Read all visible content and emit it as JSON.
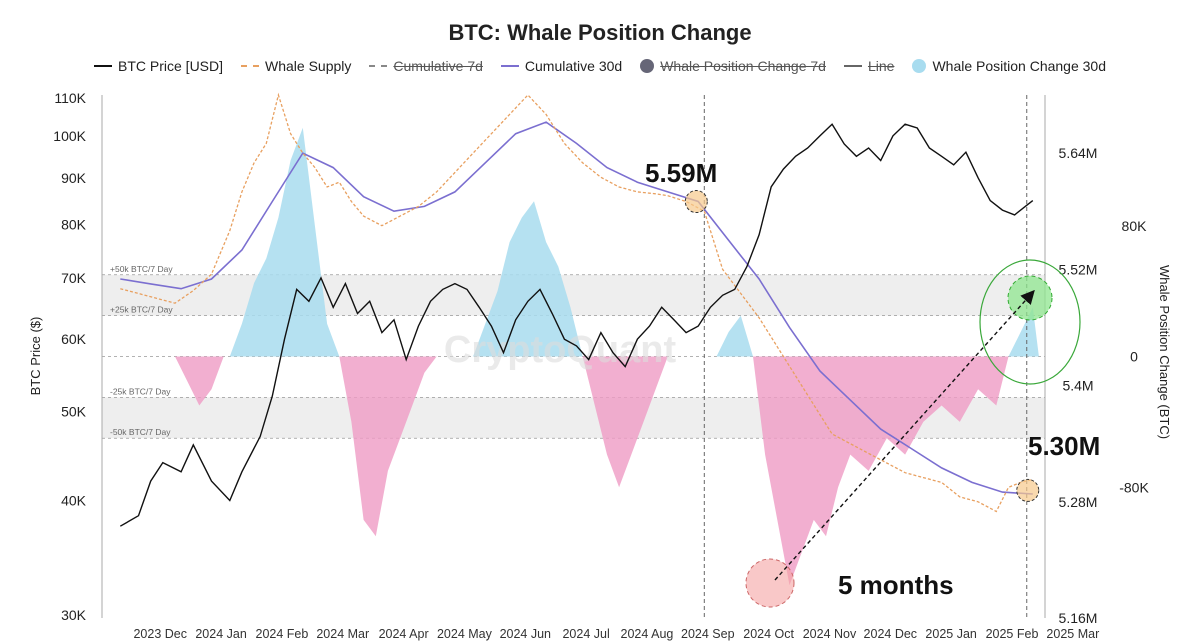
{
  "chart_data": {
    "type": "line",
    "title": "BTC: Whale Position Change",
    "watermark": "CryptoQuant",
    "legend": [
      {
        "name": "BTC Price [USD]",
        "style": "solid",
        "color": "#111111",
        "struck": false
      },
      {
        "name": "Whale Supply",
        "style": "dashed",
        "color": "#e8a060",
        "struck": false
      },
      {
        "name": "Cumulative 7d",
        "style": "dashed",
        "color": "#888888",
        "struck": true
      },
      {
        "name": "Cumulative 30d",
        "style": "solid",
        "color": "#7b6fd0",
        "struck": false
      },
      {
        "name": "Whale Position Change 7d",
        "style": "dot",
        "color": "#666677",
        "struck": true
      },
      {
        "name": "Line",
        "style": "solid",
        "color": "#666666",
        "struck": true
      },
      {
        "name": "Whale Position Change 30d",
        "style": "dot",
        "color": "#a8dcef",
        "struck": false
      }
    ],
    "x_axis": {
      "labels": [
        "2023 Dec",
        "2024 Jan",
        "2024 Feb",
        "2024 Mar",
        "2024 Apr",
        "2024 May",
        "2024 Jun",
        "2024 Jul",
        "2024 Aug",
        "2024 Sep",
        "2024 Oct",
        "2024 Nov",
        "2024 Dec",
        "2025 Jan",
        "2025 Feb",
        "2025 Mar"
      ],
      "range_months": [
        -0.3,
        15.2
      ]
    },
    "y_left": {
      "label": "BTC Price ($)",
      "scale": "log",
      "range": [
        30000,
        110000
      ],
      "ticks": [
        110000,
        100000,
        90000,
        80000,
        70000,
        60000,
        50000,
        40000,
        30000
      ],
      "tick_labels": [
        "110K",
        "100K",
        "90K",
        "80K",
        "70K",
        "60K",
        "50K",
        "40K",
        "30K"
      ]
    },
    "y_supply": {
      "range": [
        5.16,
        5.7
      ],
      "ticks": [
        5.64,
        5.52,
        5.4,
        5.28,
        5.16
      ],
      "tick_labels": [
        "5.64M",
        "5.52M",
        "5.4M",
        "5.28M",
        "5.16M"
      ]
    },
    "y_right": {
      "label": "Whale Position Change (BTC)",
      "range": [
        -160000,
        160000
      ],
      "ticks": [
        80000,
        0,
        -80000
      ],
      "tick_labels": [
        "80K",
        "0",
        "-80K"
      ]
    },
    "bands": [
      {
        "label": "+50k BTC/7 Day",
        "value": 50000
      },
      {
        "label": "+25k BTC/7 Day",
        "value": 25000
      },
      {
        "label": "-25k BTC/7 Day",
        "value": -25000
      },
      {
        "label": "-50k BTC/7 Day",
        "value": -50000
      }
    ],
    "btc_price": [
      [
        0.0,
        37500
      ],
      [
        0.3,
        38500
      ],
      [
        0.5,
        42000
      ],
      [
        0.7,
        44000
      ],
      [
        1.0,
        43000
      ],
      [
        1.2,
        46000
      ],
      [
        1.5,
        42000
      ],
      [
        1.8,
        40000
      ],
      [
        2.0,
        43000
      ],
      [
        2.3,
        47000
      ],
      [
        2.5,
        52000
      ],
      [
        2.7,
        60000
      ],
      [
        2.9,
        68000
      ],
      [
        3.1,
        66000
      ],
      [
        3.3,
        70000
      ],
      [
        3.5,
        65000
      ],
      [
        3.7,
        69000
      ],
      [
        3.9,
        64000
      ],
      [
        4.1,
        66000
      ],
      [
        4.3,
        61000
      ],
      [
        4.5,
        63000
      ],
      [
        4.7,
        57000
      ],
      [
        4.9,
        62000
      ],
      [
        5.1,
        66000
      ],
      [
        5.3,
        68000
      ],
      [
        5.5,
        69000
      ],
      [
        5.7,
        68000
      ],
      [
        5.9,
        65000
      ],
      [
        6.1,
        62000
      ],
      [
        6.3,
        58000
      ],
      [
        6.5,
        63000
      ],
      [
        6.7,
        66000
      ],
      [
        6.9,
        68000
      ],
      [
        7.1,
        64000
      ],
      [
        7.3,
        60000
      ],
      [
        7.5,
        59000
      ],
      [
        7.7,
        57000
      ],
      [
        7.9,
        61000
      ],
      [
        8.1,
        58000
      ],
      [
        8.3,
        56000
      ],
      [
        8.5,
        60000
      ],
      [
        8.7,
        62000
      ],
      [
        8.9,
        65000
      ],
      [
        9.1,
        63000
      ],
      [
        9.3,
        61000
      ],
      [
        9.5,
        62000
      ],
      [
        9.7,
        65000
      ],
      [
        9.9,
        67000
      ],
      [
        10.1,
        68000
      ],
      [
        10.3,
        72000
      ],
      [
        10.5,
        78000
      ],
      [
        10.7,
        88000
      ],
      [
        10.9,
        92000
      ],
      [
        11.1,
        95000
      ],
      [
        11.3,
        97000
      ],
      [
        11.5,
        100000
      ],
      [
        11.7,
        103000
      ],
      [
        11.9,
        98000
      ],
      [
        12.1,
        95000
      ],
      [
        12.3,
        97000
      ],
      [
        12.5,
        94000
      ],
      [
        12.7,
        100000
      ],
      [
        12.9,
        103000
      ],
      [
        13.1,
        102000
      ],
      [
        13.3,
        97000
      ],
      [
        13.5,
        95000
      ],
      [
        13.7,
        93000
      ],
      [
        13.9,
        96000
      ],
      [
        14.1,
        90000
      ],
      [
        14.3,
        85000
      ],
      [
        14.5,
        83000
      ],
      [
        14.7,
        82000
      ],
      [
        14.9,
        84000
      ],
      [
        15.0,
        85000
      ]
    ],
    "whale_supply": [
      [
        0.0,
        5.5
      ],
      [
        0.3,
        5.495
      ],
      [
        0.6,
        5.49
      ],
      [
        0.9,
        5.485
      ],
      [
        1.2,
        5.498
      ],
      [
        1.5,
        5.515
      ],
      [
        1.8,
        5.56
      ],
      [
        2.0,
        5.6
      ],
      [
        2.2,
        5.63
      ],
      [
        2.4,
        5.65
      ],
      [
        2.6,
        5.7
      ],
      [
        2.8,
        5.66
      ],
      [
        3.0,
        5.64
      ],
      [
        3.2,
        5.625
      ],
      [
        3.4,
        5.605
      ],
      [
        3.6,
        5.61
      ],
      [
        3.8,
        5.59
      ],
      [
        4.0,
        5.575
      ],
      [
        4.3,
        5.565
      ],
      [
        4.6,
        5.575
      ],
      [
        4.9,
        5.585
      ],
      [
        5.2,
        5.6
      ],
      [
        5.5,
        5.62
      ],
      [
        5.8,
        5.64
      ],
      [
        6.1,
        5.66
      ],
      [
        6.4,
        5.68
      ],
      [
        6.7,
        5.7
      ],
      [
        7.0,
        5.68
      ],
      [
        7.3,
        5.65
      ],
      [
        7.6,
        5.63
      ],
      [
        7.9,
        5.615
      ],
      [
        8.2,
        5.605
      ],
      [
        8.5,
        5.6
      ],
      [
        8.8,
        5.598
      ],
      [
        9.0,
        5.596
      ],
      [
        9.3,
        5.59
      ],
      [
        9.6,
        5.58
      ],
      [
        9.9,
        5.52
      ],
      [
        10.2,
        5.495
      ],
      [
        10.5,
        5.47
      ],
      [
        10.8,
        5.44
      ],
      [
        11.1,
        5.41
      ],
      [
        11.4,
        5.38
      ],
      [
        11.7,
        5.35
      ],
      [
        12.0,
        5.34
      ],
      [
        12.3,
        5.33
      ],
      [
        12.6,
        5.32
      ],
      [
        12.9,
        5.31
      ],
      [
        13.2,
        5.305
      ],
      [
        13.5,
        5.3
      ],
      [
        13.8,
        5.285
      ],
      [
        14.1,
        5.28
      ],
      [
        14.4,
        5.27
      ],
      [
        14.6,
        5.295
      ],
      [
        14.8,
        5.3
      ],
      [
        15.0,
        5.303
      ]
    ],
    "cumulative_30d": [
      [
        0.0,
        5.51
      ],
      [
        0.5,
        5.505
      ],
      [
        1.0,
        5.5
      ],
      [
        1.5,
        5.51
      ],
      [
        2.0,
        5.54
      ],
      [
        2.5,
        5.59
      ],
      [
        3.0,
        5.64
      ],
      [
        3.5,
        5.625
      ],
      [
        4.0,
        5.595
      ],
      [
        4.5,
        5.58
      ],
      [
        5.0,
        5.585
      ],
      [
        5.5,
        5.6
      ],
      [
        6.0,
        5.63
      ],
      [
        6.5,
        5.66
      ],
      [
        7.0,
        5.672
      ],
      [
        7.5,
        5.65
      ],
      [
        8.0,
        5.625
      ],
      [
        8.5,
        5.61
      ],
      [
        9.0,
        5.6
      ],
      [
        9.5,
        5.59
      ],
      [
        10.0,
        5.55
      ],
      [
        10.5,
        5.51
      ],
      [
        11.0,
        5.46
      ],
      [
        11.5,
        5.415
      ],
      [
        12.0,
        5.385
      ],
      [
        12.5,
        5.355
      ],
      [
        13.0,
        5.335
      ],
      [
        13.5,
        5.315
      ],
      [
        14.0,
        5.3
      ],
      [
        14.5,
        5.29
      ],
      [
        15.0,
        5.288
      ]
    ],
    "whale_position_change_30d": [
      [
        1.8,
        0
      ],
      [
        2.0,
        20000
      ],
      [
        2.2,
        45000
      ],
      [
        2.4,
        60000
      ],
      [
        2.6,
        85000
      ],
      [
        2.8,
        120000
      ],
      [
        3.0,
        140000
      ],
      [
        3.2,
        80000
      ],
      [
        3.4,
        20000
      ],
      [
        3.6,
        0
      ],
      [
        5.8,
        0
      ],
      [
        6.0,
        20000
      ],
      [
        6.2,
        40000
      ],
      [
        6.4,
        70000
      ],
      [
        6.6,
        85000
      ],
      [
        6.8,
        95000
      ],
      [
        7.0,
        70000
      ],
      [
        7.2,
        55000
      ],
      [
        7.4,
        30000
      ],
      [
        7.6,
        0
      ],
      [
        9.8,
        0
      ],
      [
        10.0,
        15000
      ],
      [
        10.2,
        25000
      ],
      [
        10.4,
        0
      ],
      [
        14.6,
        0
      ],
      [
        14.8,
        15000
      ],
      [
        15.0,
        30000
      ],
      [
        15.1,
        0
      ]
    ],
    "whale_position_change_30d_negative": [
      [
        0.9,
        0
      ],
      [
        1.1,
        -15000
      ],
      [
        1.3,
        -30000
      ],
      [
        1.5,
        -20000
      ],
      [
        1.7,
        0
      ],
      [
        3.6,
        0
      ],
      [
        3.8,
        -40000
      ],
      [
        4.0,
        -100000
      ],
      [
        4.2,
        -110000
      ],
      [
        4.4,
        -70000
      ],
      [
        4.6,
        -50000
      ],
      [
        4.8,
        -30000
      ],
      [
        5.0,
        -10000
      ],
      [
        5.2,
        0
      ],
      [
        7.6,
        0
      ],
      [
        7.8,
        -30000
      ],
      [
        8.0,
        -60000
      ],
      [
        8.2,
        -80000
      ],
      [
        8.4,
        -60000
      ],
      [
        8.6,
        -40000
      ],
      [
        8.8,
        -20000
      ],
      [
        9.0,
        0
      ],
      [
        10.4,
        0
      ],
      [
        10.6,
        -60000
      ],
      [
        10.8,
        -100000
      ],
      [
        11.0,
        -140000
      ],
      [
        11.2,
        -120000
      ],
      [
        11.4,
        -100000
      ],
      [
        11.6,
        -110000
      ],
      [
        11.8,
        -80000
      ],
      [
        12.0,
        -60000
      ],
      [
        12.3,
        -70000
      ],
      [
        12.6,
        -50000
      ],
      [
        12.9,
        -60000
      ],
      [
        13.2,
        -40000
      ],
      [
        13.5,
        -30000
      ],
      [
        13.8,
        -40000
      ],
      [
        14.1,
        -20000
      ],
      [
        14.4,
        -30000
      ],
      [
        14.6,
        0
      ]
    ],
    "annotations": [
      {
        "text": "5.59M",
        "x_month": 9.6,
        "y_supply": 5.59
      },
      {
        "text": "5.30M",
        "x_month": 14.9,
        "y_supply": 5.3
      },
      {
        "text": "5 months",
        "x_month": 12.2,
        "y_supply": 5.18
      }
    ],
    "vertical_markers_months": [
      9.6,
      14.9
    ]
  }
}
